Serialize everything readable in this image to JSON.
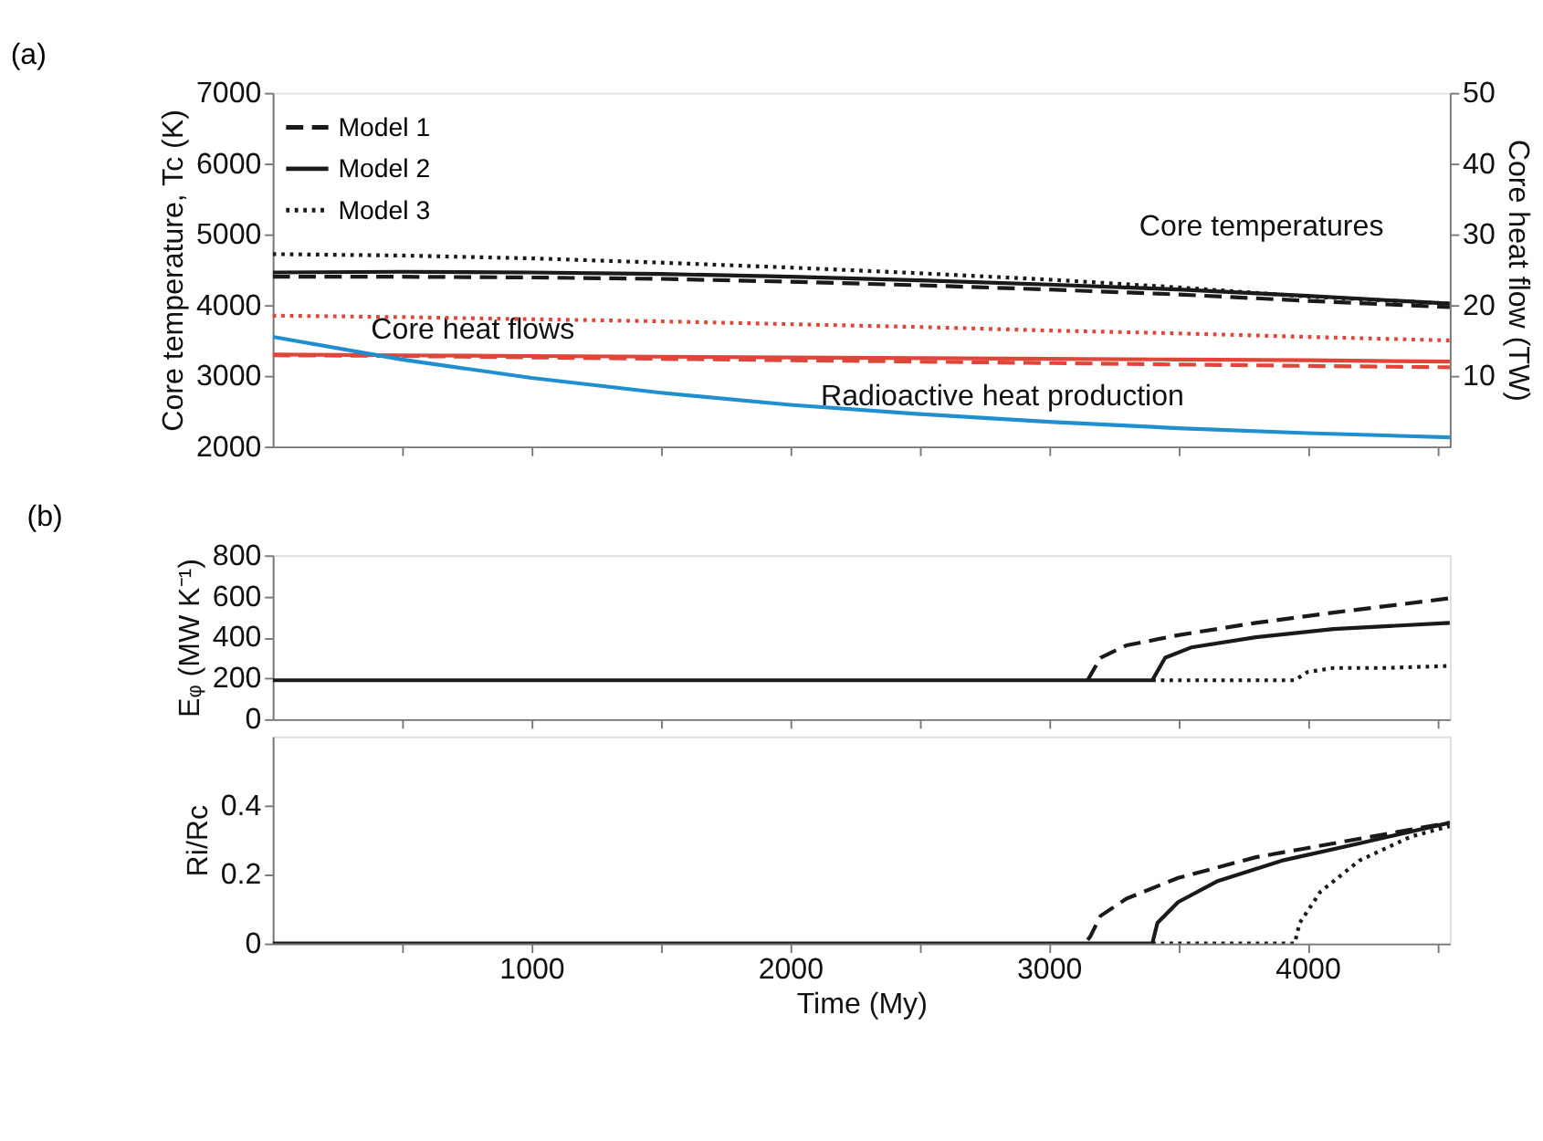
{
  "chart_data": [
    {
      "type": "line",
      "title": "(a)",
      "ylabel": "Core temperature, Tc (K)",
      "y2label": "Core heat flow (TW)",
      "xlim": [
        0,
        4550
      ],
      "xticks": [
        {
          "value": 500,
          "label": null
        },
        1000,
        {
          "value": 1500,
          "label": null
        },
        2000,
        {
          "value": 2500,
          "label": null
        },
        3000,
        {
          "value": 3500,
          "label": null
        },
        4000,
        {
          "value": 4500,
          "label": null
        }
      ],
      "tick_labels": "y",
      "ylim": [
        2000,
        7000
      ],
      "yticks": [
        2000,
        3000,
        4000,
        5000,
        6000,
        7000
      ],
      "y2lim": [
        0,
        50
      ],
      "y2ticks": [
        10,
        20,
        30,
        40,
        50
      ],
      "legend": "top left",
      "grid": false,
      "annotations": [
        "Core temperatures",
        "Core heat flows",
        "Radioactive heat production"
      ],
      "x": [
        0,
        500,
        1000,
        1500,
        2000,
        2500,
        3000,
        3500,
        4000,
        4550
      ],
      "series": [
        {
          "name": "Model 1",
          "color": "#1a1a1a",
          "line_style": "dashed",
          "values": [
            4400,
            4400,
            4390,
            4370,
            4330,
            4280,
            4220,
            4150,
            4060,
            3970
          ]
        },
        {
          "name": "Model 2",
          "color": "#1a1a1a",
          "line_style": "solid",
          "values": [
            4460,
            4470,
            4460,
            4440,
            4400,
            4350,
            4290,
            4220,
            4130,
            4020
          ]
        },
        {
          "name": "Model 3",
          "color": "#1a1a1a",
          "line_style": "dotted",
          "values": [
            4720,
            4700,
            4660,
            4600,
            4530,
            4450,
            4360,
            4250,
            4120,
            4020
          ]
        },
        {
          "color": "#e0453a",
          "line_style": "dashed",
          "axis": "y2",
          "values": [
            12.9,
            12.8,
            12.6,
            12.4,
            12.2,
            12.0,
            11.8,
            11.6,
            11.4,
            11.2
          ]
        },
        {
          "color": "#e0453a",
          "line_style": "solid",
          "axis": "y2",
          "values": [
            13.0,
            12.9,
            12.8,
            12.7,
            12.6,
            12.5,
            12.4,
            12.3,
            12.2,
            12.0
          ]
        },
        {
          "color": "#e0453a",
          "line_style": "dotted",
          "axis": "y2",
          "values": [
            18.5,
            18.3,
            18.0,
            17.7,
            17.3,
            16.9,
            16.4,
            16.0,
            15.5,
            15.0
          ]
        },
        {
          "color": "#1f8fd0",
          "line_style": "solid",
          "axis": "y2",
          "values": [
            15.5,
            12.3,
            9.7,
            7.6,
            5.9,
            4.6,
            3.5,
            2.6,
            1.9,
            1.3
          ]
        }
      ]
    },
    {
      "type": "line",
      "title": "(b)",
      "ylabel": "Eᵩ (MW K⁻¹)",
      "grid": false,
      "xlim": [
        0,
        4550
      ],
      "xticks": [
        {
          "value": 500,
          "label": null
        },
        1000,
        {
          "value": 1500,
          "label": null
        },
        2000,
        {
          "value": 2500,
          "label": null
        },
        3000,
        {
          "value": 3500,
          "label": null
        },
        4000,
        {
          "value": 4500,
          "label": null
        }
      ],
      "tick_labels": "y",
      "ylim": [
        0,
        800
      ],
      "yticks": [
        0,
        200,
        400,
        600,
        800
      ],
      "series": [
        {
          "color": "#1a1a1a",
          "line_style": "dashed",
          "x": [
            3150,
            3200,
            3300,
            3500,
            3800,
            4100,
            4550
          ],
          "values": [
            190,
            300,
            360,
            410,
            470,
            520,
            590
          ]
        },
        {
          "color": "#1a1a1a",
          "line_style": "solid",
          "x": [
            0,
            3400,
            3450,
            3550,
            3800,
            4100,
            4550
          ],
          "values": [
            190,
            190,
            300,
            350,
            400,
            440,
            470
          ]
        },
        {
          "color": "#1a1a1a",
          "line_style": "dotted",
          "x": [
            3400,
            3950,
            4000,
            4100,
            4300,
            4550
          ],
          "values": [
            190,
            190,
            230,
            250,
            250,
            260
          ]
        }
      ]
    },
    {
      "type": "line",
      "xlabel": "Time (My)",
      "ylabel": "Ri/Rc",
      "grid": false,
      "xlim": [
        0,
        4550
      ],
      "xticks": [
        {
          "value": 500,
          "label": null
        },
        1000,
        {
          "value": 1500,
          "label": null
        },
        2000,
        {
          "value": 2500,
          "label": null
        },
        3000,
        {
          "value": 3500,
          "label": null
        },
        4000,
        {
          "value": 4500,
          "label": null
        }
      ],
      "ylim": [
        0,
        0.6
      ],
      "yticks": [
        0,
        0.2,
        0.4
      ],
      "series": [
        {
          "color": "#1a1a1a",
          "line_style": "dashed",
          "x": [
            3150,
            3160,
            3200,
            3300,
            3500,
            3800,
            4100,
            4550
          ],
          "values": [
            0.01,
            0.02,
            0.08,
            0.13,
            0.19,
            0.25,
            0.29,
            0.35
          ]
        },
        {
          "color": "#1a1a1a",
          "line_style": "solid",
          "x": [
            0,
            3400,
            3420,
            3500,
            3650,
            3900,
            4200,
            4550
          ],
          "values": [
            0,
            0,
            0.06,
            0.12,
            0.18,
            0.24,
            0.29,
            0.35
          ]
        },
        {
          "color": "#1a1a1a",
          "line_style": "dotted",
          "x": [
            3400,
            3950,
            3970,
            4050,
            4200,
            4400,
            4550
          ],
          "values": [
            0,
            0,
            0.06,
            0.15,
            0.24,
            0.31,
            0.34
          ]
        }
      ]
    }
  ]
}
